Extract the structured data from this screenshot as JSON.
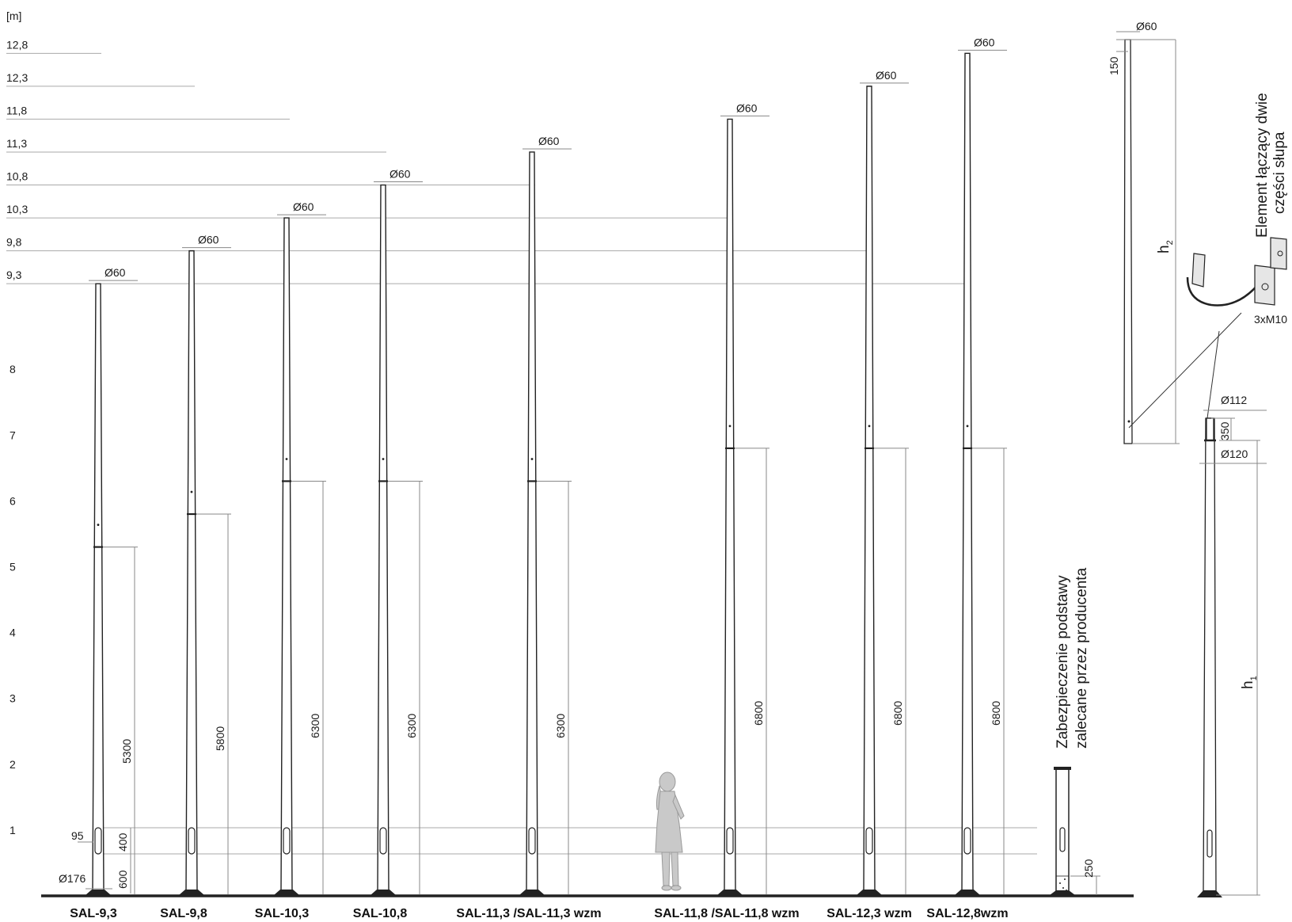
{
  "scale": {
    "unit": "[m]",
    "levels": [
      {
        "value": 12.8,
        "label": "12,8"
      },
      {
        "value": 12.3,
        "label": "12,3"
      },
      {
        "value": 11.8,
        "label": "11,8"
      },
      {
        "value": 11.3,
        "label": "11,3"
      },
      {
        "value": 10.8,
        "label": "10,8"
      },
      {
        "value": 10.3,
        "label": "10,3"
      },
      {
        "value": 9.8,
        "label": "9,8"
      },
      {
        "value": 9.3,
        "label": "9,3"
      }
    ],
    "ticks": [
      {
        "value": 8,
        "label": "8"
      },
      {
        "value": 7,
        "label": "7"
      },
      {
        "value": 6,
        "label": "6"
      },
      {
        "value": 5,
        "label": "5"
      },
      {
        "value": 4,
        "label": "4"
      },
      {
        "value": 3,
        "label": "3"
      },
      {
        "value": 2,
        "label": "2"
      },
      {
        "value": 1,
        "label": "1"
      }
    ]
  },
  "poles": [
    {
      "name": "SAL-9,3",
      "height_m": 9.3,
      "joint_mm": 5300,
      "joint_label": "5300",
      "top_label": "Ø60"
    },
    {
      "name": "SAL-9,8",
      "height_m": 9.8,
      "joint_mm": 5800,
      "joint_label": "5800",
      "top_label": "Ø60"
    },
    {
      "name": "SAL-10,3",
      "height_m": 10.3,
      "joint_mm": 6300,
      "joint_label": "6300",
      "top_label": "Ø60"
    },
    {
      "name": "SAL-10,8",
      "height_m": 10.8,
      "joint_mm": 6300,
      "joint_label": "6300",
      "top_label": "Ø60"
    },
    {
      "name": "SAL-11,3 /SAL-11,3 wzm",
      "height_m": 11.3,
      "joint_mm": 6300,
      "joint_label": "6300",
      "top_label": "Ø60"
    },
    {
      "name": "SAL-11,8 /SAL-11,8 wzm",
      "height_m": 11.8,
      "joint_mm": 6800,
      "joint_label": "6800",
      "top_label": "Ø60"
    },
    {
      "name": "SAL-12,3 wzm",
      "height_m": 12.3,
      "joint_mm": 6800,
      "joint_label": "6800",
      "top_label": "Ø60"
    },
    {
      "name": "SAL-12,8wzm",
      "height_m": 12.8,
      "joint_mm": 6800,
      "joint_label": "6800",
      "top_label": "Ø60"
    }
  ],
  "base_dims": {
    "door_width": "95",
    "door_height": "400",
    "door_offset": "600",
    "base_diameter": "Ø176"
  },
  "base_guard": {
    "note_line1": "Zabezpieczenie podstawy",
    "note_line2": "zalecane przez producenta",
    "height": "250"
  },
  "detail": {
    "top_diameter": "Ø60",
    "top_offset": "150",
    "upper_height_main": "h",
    "upper_height_sub": "2",
    "lower_height_main": "h",
    "lower_height_sub": "1",
    "sleeve_top_diameter": "Ø112",
    "sleeve_length": "350",
    "sleeve_bottom_diameter": "Ø120",
    "connector_note_line1": "Element łączący dwie",
    "connector_note_line2": "części słupa",
    "bolts": "3xM10"
  }
}
